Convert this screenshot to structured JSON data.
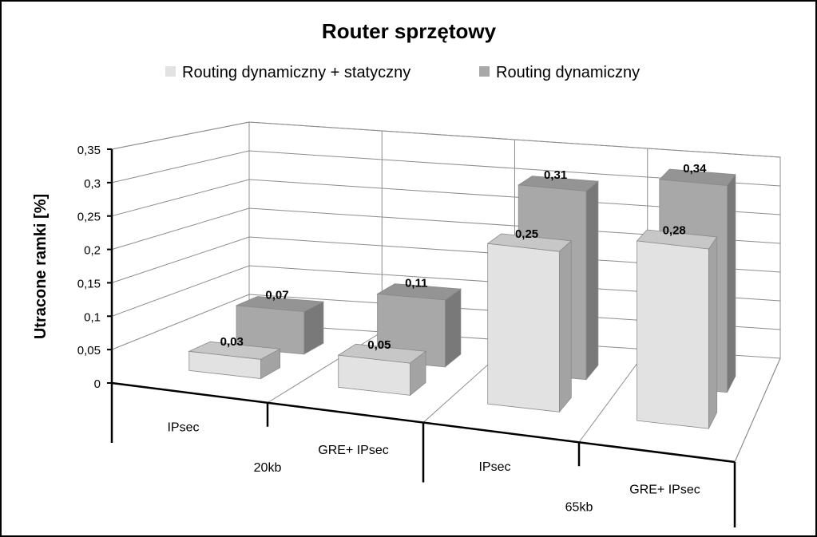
{
  "chart_data": {
    "type": "bar",
    "title": "Router sprzętowy",
    "ylabel": "Utracone ramki [%]",
    "xlabel": "",
    "ylim": [
      0,
      0.35
    ],
    "yticks": [
      "0",
      "0,05",
      "0,1",
      "0,15",
      "0,2",
      "0,25",
      "0,3",
      "0,35"
    ],
    "grid": true,
    "legend_position": "top",
    "categories": [
      "IPsec",
      "GRE+ IPsec",
      "IPsec",
      "GRE+ IPsec"
    ],
    "groups": [
      {
        "label": "20kb",
        "categories": [
          "IPsec",
          "GRE+ IPsec"
        ]
      },
      {
        "label": "65kb",
        "categories": [
          "IPsec",
          "GRE+ IPsec"
        ]
      }
    ],
    "series": [
      {
        "name": "Routing dynamiczny + statyczny",
        "values": [
          0.03,
          0.05,
          0.25,
          0.28
        ],
        "labels": [
          "0,03",
          "0,05",
          "0,25",
          "0,28"
        ],
        "color": "#e2e2e2"
      },
      {
        "name": "Routing dynamiczny",
        "values": [
          0.07,
          0.11,
          0.31,
          0.34
        ],
        "labels": [
          "0,07",
          "0,11",
          "0,31",
          "0,34"
        ],
        "color": "#a8a8a8"
      }
    ]
  }
}
